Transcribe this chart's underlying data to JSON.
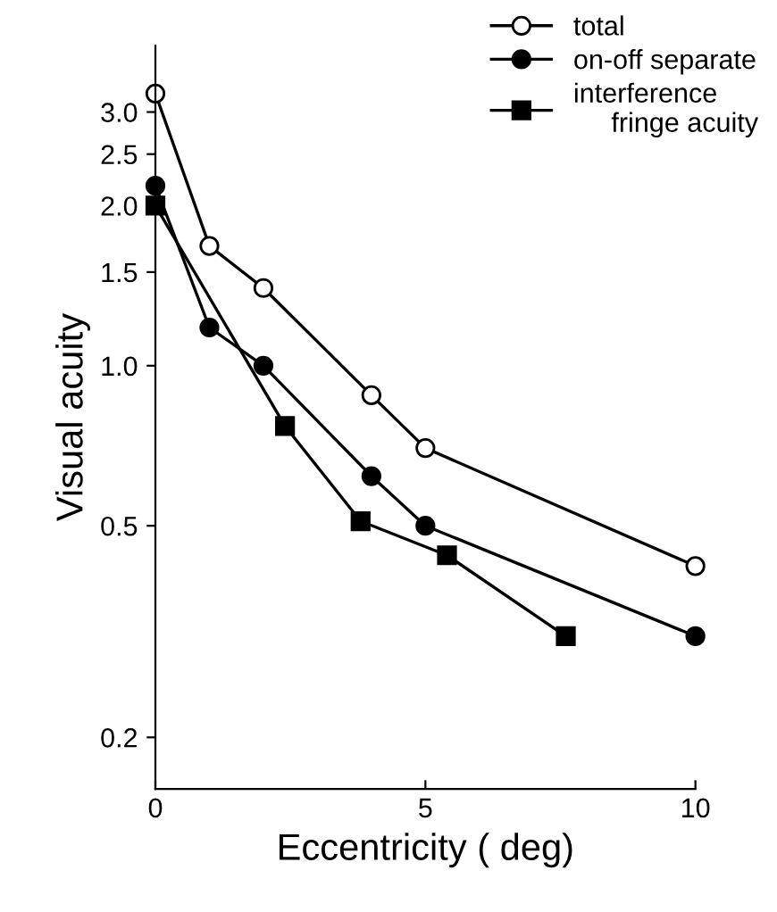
{
  "chart_data": {
    "type": "line",
    "xlabel": "Eccentricity ( deg)",
    "ylabel": "Visual acuity",
    "log": "y",
    "xlim": [
      0,
      10
    ],
    "xticks": [
      0,
      5,
      10
    ],
    "ylim": [
      0.16,
      4.0
    ],
    "yticks": [
      {
        "value": 0.2,
        "label": "0.2"
      },
      {
        "value": 0.5,
        "label": "0.5"
      },
      {
        "value": 1.0,
        "label": "1.0"
      },
      {
        "value": 1.5,
        "label": "1.5"
      },
      {
        "value": 2.0,
        "label": "2.0"
      },
      {
        "value": 2.5,
        "label": "2.5"
      },
      {
        "value": 3.0,
        "label": "3.0"
      }
    ],
    "legend": "top right",
    "grid": false,
    "line_style": "solid",
    "series": [
      {
        "name": "total",
        "color": "#ffffff",
        "marker": "circle",
        "x": [
          0,
          1,
          2,
          4,
          5,
          10
        ],
        "values": [
          3.25,
          1.68,
          1.4,
          0.88,
          0.7,
          0.42
        ]
      },
      {
        "name": "on-off separate",
        "color": "#000000",
        "marker": "circle",
        "x": [
          0,
          1,
          2,
          4,
          5,
          10
        ],
        "values": [
          2.18,
          1.18,
          1.0,
          0.62,
          0.5,
          0.31
        ]
      },
      {
        "name": "interference\n     fringe acuity",
        "color": "#000000",
        "marker": "square",
        "x": [
          0,
          2.4,
          3.8,
          5.4,
          7.6
        ],
        "values": [
          2.0,
          0.77,
          0.51,
          0.44,
          0.31
        ]
      }
    ]
  }
}
